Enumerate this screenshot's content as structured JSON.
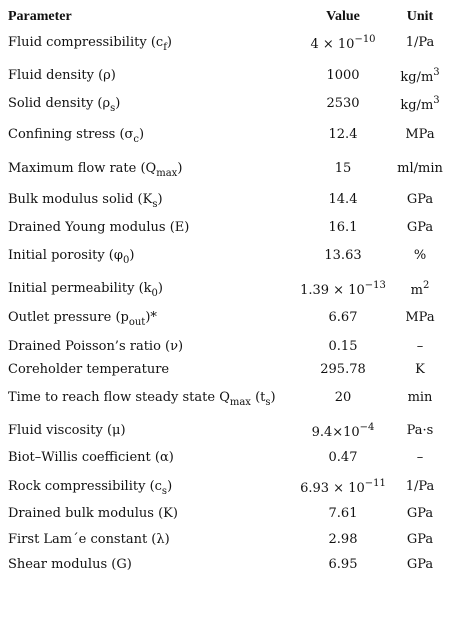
{
  "table": {
    "header": [
      "Parameter",
      "Value",
      "Unit"
    ],
    "rows": [
      [
        [
          "Fluid compressibility (c",
          {
            "sub": "f"
          },
          ")"
        ],
        [
          "4 × 10",
          {
            "sup": "−10"
          }
        ],
        [
          "1/Pa"
        ]
      ],
      [
        [
          "Fluid density (ρ)"
        ],
        [
          "1000"
        ],
        [
          "kg/m",
          {
            "sup": "3"
          }
        ]
      ],
      [
        [
          "Solid density (ρ",
          {
            "sub": "s"
          },
          ")"
        ],
        [
          "2530"
        ],
        [
          "kg/m",
          {
            "sup": "3"
          }
        ]
      ],
      [
        [
          "Confining stress (σ",
          {
            "sub": "c"
          },
          ")"
        ],
        [
          "12.4"
        ],
        [
          "MPa"
        ]
      ],
      [
        [
          "Maximum flow rate (Q",
          {
            "sub": "max"
          },
          ")"
        ],
        [
          "15"
        ],
        [
          "ml/min"
        ]
      ],
      [
        [
          "Bulk modulus solid (K",
          {
            "sub": "s"
          },
          ")"
        ],
        [
          "14.4"
        ],
        [
          "GPa"
        ]
      ],
      [
        [
          "Drained Young modulus (E)"
        ],
        [
          "16.1"
        ],
        [
          "GPa"
        ]
      ],
      [
        [
          "Initial porosity (φ",
          {
            "sub": "0"
          },
          ")"
        ],
        [
          "13.63"
        ],
        [
          "%"
        ]
      ],
      [
        [
          "Initial permeability (k",
          {
            "sub": "0"
          },
          ")"
        ],
        [
          "1.39 × 10",
          {
            "sup": "−13"
          }
        ],
        [
          "m",
          {
            "sup": "2"
          }
        ]
      ],
      [
        [
          "Outlet pressure (p",
          {
            "sub": "out"
          },
          ")*"
        ],
        [
          "6.67"
        ],
        [
          "MPa"
        ]
      ],
      [
        [
          "Drained Poisson’s ratio (ν)"
        ],
        [
          "0.15"
        ],
        [
          "–"
        ]
      ],
      [
        [
          "Coreholder temperature"
        ],
        [
          "295.78"
        ],
        [
          "K"
        ]
      ],
      [
        [
          "Time to reach flow steady state Q",
          {
            "sub": "max"
          },
          " (t",
          {
            "sub": "s"
          },
          ")"
        ],
        [
          "20"
        ],
        [
          "min"
        ]
      ],
      [
        [
          "Fluid viscosity (μ)"
        ],
        [
          "9.4×10",
          {
            "sup": "−4"
          }
        ],
        [
          "Pa·s"
        ]
      ],
      [
        [
          "Biot–Willis coefficient (α)"
        ],
        [
          "0.47"
        ],
        [
          "–"
        ]
      ],
      [
        [
          "Rock compressibility (c",
          {
            "sub": "s"
          },
          ")"
        ],
        [
          "6.93 × 10",
          {
            "sup": "−11"
          }
        ],
        [
          "1/Pa"
        ]
      ],
      [
        [
          "Drained bulk modulus (K)"
        ],
        [
          "7.61"
        ],
        [
          "GPa"
        ]
      ],
      [
        [
          "First Lam´e constant (λ)"
        ],
        [
          "2.98"
        ],
        [
          "GPa"
        ]
      ],
      [
        [
          "Shear modulus (G)"
        ],
        [
          "6.95"
        ],
        [
          "GPa"
        ]
      ]
    ]
  }
}
